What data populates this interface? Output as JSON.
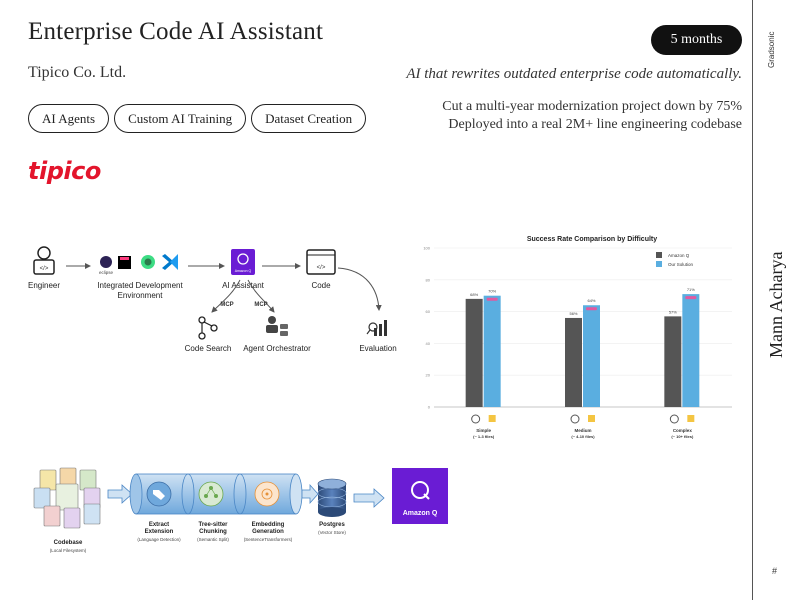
{
  "title": "Enterprise Code AI Assistant",
  "company": "Tipico Co. Ltd.",
  "duration": "5 months",
  "tagline": "AI that rewrites outdated enterprise code automatically.",
  "highlights": [
    "Cut a multi-year modernization project down by 75%",
    "Deployed into a real 2M+ line engineering codebase"
  ],
  "tags": [
    "AI Agents",
    "Custom AI Training",
    "Dataset Creation"
  ],
  "logo_text": "tipico",
  "sidebar": {
    "brand": "Gradsonic",
    "author": "Mann Acharya",
    "page_number": "#"
  },
  "architecture": {
    "nodes": {
      "engineer": "Engineer",
      "ide_line1": "Integrated Development",
      "ide_line2": "Environment",
      "eclipse": "eclipse",
      "ai_assistant": "AI Assistant",
      "amazon_q_small": "Amazon Q",
      "code": "Code",
      "code_search": "Code Search",
      "agent_orchestrator": "Agent Orchestrator",
      "evaluation": "Evaluation"
    },
    "edge_labels": {
      "mcp_left": "MCP",
      "mcp_right": "MCP"
    }
  },
  "pipeline": {
    "codebase_line1": "Codebase",
    "codebase_line2": "(Local Filesystem)",
    "stages": [
      {
        "title1": "Extract",
        "title2": "Extension",
        "sub": "(Language Detection)"
      },
      {
        "title1": "Tree-sitter",
        "title2": "Chunking",
        "sub": "(Semantic Split)"
      },
      {
        "title1": "Embedding",
        "title2": "Generation",
        "sub": "(SentenceTransformers)"
      }
    ],
    "postgres_line1": "Postgres",
    "postgres_line2": "(Vector Store)",
    "amazon_q": "Amazon Q"
  },
  "chart_data": {
    "type": "bar",
    "title": "Success Rate Comparison by Difficulty",
    "categories": [
      "Simple",
      "Medium",
      "Complex"
    ],
    "category_sublabels": [
      "(~ 1-3 files)",
      "(~ 4-10 files)",
      "(~ 10+ files)"
    ],
    "series": [
      {
        "name": "Amazon Q",
        "values": [
          68,
          56,
          57
        ],
        "color": "#555555"
      },
      {
        "name": "Our Solution",
        "values": [
          70,
          64,
          71
        ],
        "color": "#5aaee0"
      }
    ],
    "data_labels": [
      [
        "68%",
        "70%"
      ],
      [
        "56%",
        "64%"
      ],
      [
        "57%",
        "71%"
      ]
    ],
    "yticks": [
      0,
      20,
      40,
      60,
      80,
      100
    ],
    "ylim": [
      0,
      100
    ],
    "legend": "top-right",
    "colors": {
      "amazon_q": "#555555",
      "our_solution": "#5aaee0",
      "highlight": "#e05aa0"
    }
  },
  "colors": {
    "brand_red": "#e3152c",
    "amazon_q_purple": "#6a1cd4",
    "pipe_blue": "#6fa8dc"
  }
}
